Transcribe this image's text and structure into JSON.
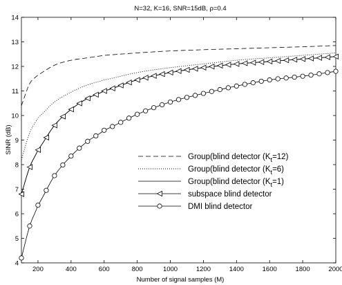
{
  "chart_data": {
    "type": "line",
    "title": "N=32, K=16, SNR=15dB, ρ=0.4",
    "xlabel": "Number of signal samples (M)",
    "ylabel": "SINR (dB)",
    "xlim": [
      100,
      2000
    ],
    "ylim": [
      4,
      14
    ],
    "xticks": [
      200,
      400,
      600,
      800,
      1000,
      1200,
      1400,
      1600,
      1800,
      2000
    ],
    "yticks": [
      4,
      5,
      6,
      7,
      8,
      9,
      10,
      11,
      12,
      13,
      14
    ],
    "grid": false,
    "legend_position": "center-right",
    "series": [
      {
        "name": "Group(blind detector (K",
        "subscript": "t",
        "name_suffix": "=12)",
        "style": "dashed",
        "marker": "none",
        "x": [
          100,
          150,
          200,
          300,
          400,
          500,
          600,
          800,
          1000,
          1200,
          1400,
          1600,
          1800,
          2000
        ],
        "y": [
          10.4,
          11.3,
          11.65,
          12.05,
          12.25,
          12.35,
          12.45,
          12.55,
          12.63,
          12.68,
          12.72,
          12.76,
          12.8,
          12.85
        ]
      },
      {
        "name": "Group(blind detector (K",
        "subscript": "t",
        "name_suffix": "=6)",
        "style": "dotted",
        "marker": "none",
        "x": [
          100,
          150,
          200,
          300,
          400,
          500,
          600,
          800,
          1000,
          1200,
          1400,
          1600,
          1800,
          2000
        ],
        "y": [
          8.2,
          9.3,
          9.9,
          10.55,
          10.95,
          11.25,
          11.45,
          11.75,
          11.95,
          12.1,
          12.25,
          12.35,
          12.45,
          12.55
        ]
      },
      {
        "name": "Group(blind detector (K",
        "subscript": "t",
        "name_suffix": "=1)",
        "style": "solid",
        "marker": "none",
        "x": [
          100,
          150,
          200,
          300,
          400,
          500,
          600,
          800,
          1000,
          1200,
          1400,
          1600,
          1800,
          2000
        ],
        "y": [
          6.8,
          7.9,
          8.6,
          9.6,
          10.25,
          10.7,
          11.0,
          11.45,
          11.75,
          11.95,
          12.1,
          12.2,
          12.3,
          12.4
        ]
      },
      {
        "name": "subspace blind detector",
        "style": "solid",
        "marker": "triangle-left",
        "x": [
          100,
          150,
          200,
          300,
          400,
          500,
          600,
          800,
          1000,
          1200,
          1400,
          1600,
          1800,
          2000
        ],
        "y": [
          6.8,
          7.9,
          8.6,
          9.6,
          10.25,
          10.7,
          11.0,
          11.45,
          11.75,
          11.95,
          12.1,
          12.2,
          12.3,
          12.4
        ]
      },
      {
        "name": "DMI blind detector",
        "style": "solid",
        "marker": "circle",
        "x": [
          100,
          150,
          200,
          300,
          400,
          500,
          600,
          800,
          1000,
          1200,
          1400,
          1600,
          1800,
          2000
        ],
        "y": [
          4.2,
          5.5,
          6.35,
          7.55,
          8.35,
          8.95,
          9.4,
          10.05,
          10.55,
          10.9,
          11.2,
          11.45,
          11.6,
          11.8
        ]
      }
    ]
  }
}
